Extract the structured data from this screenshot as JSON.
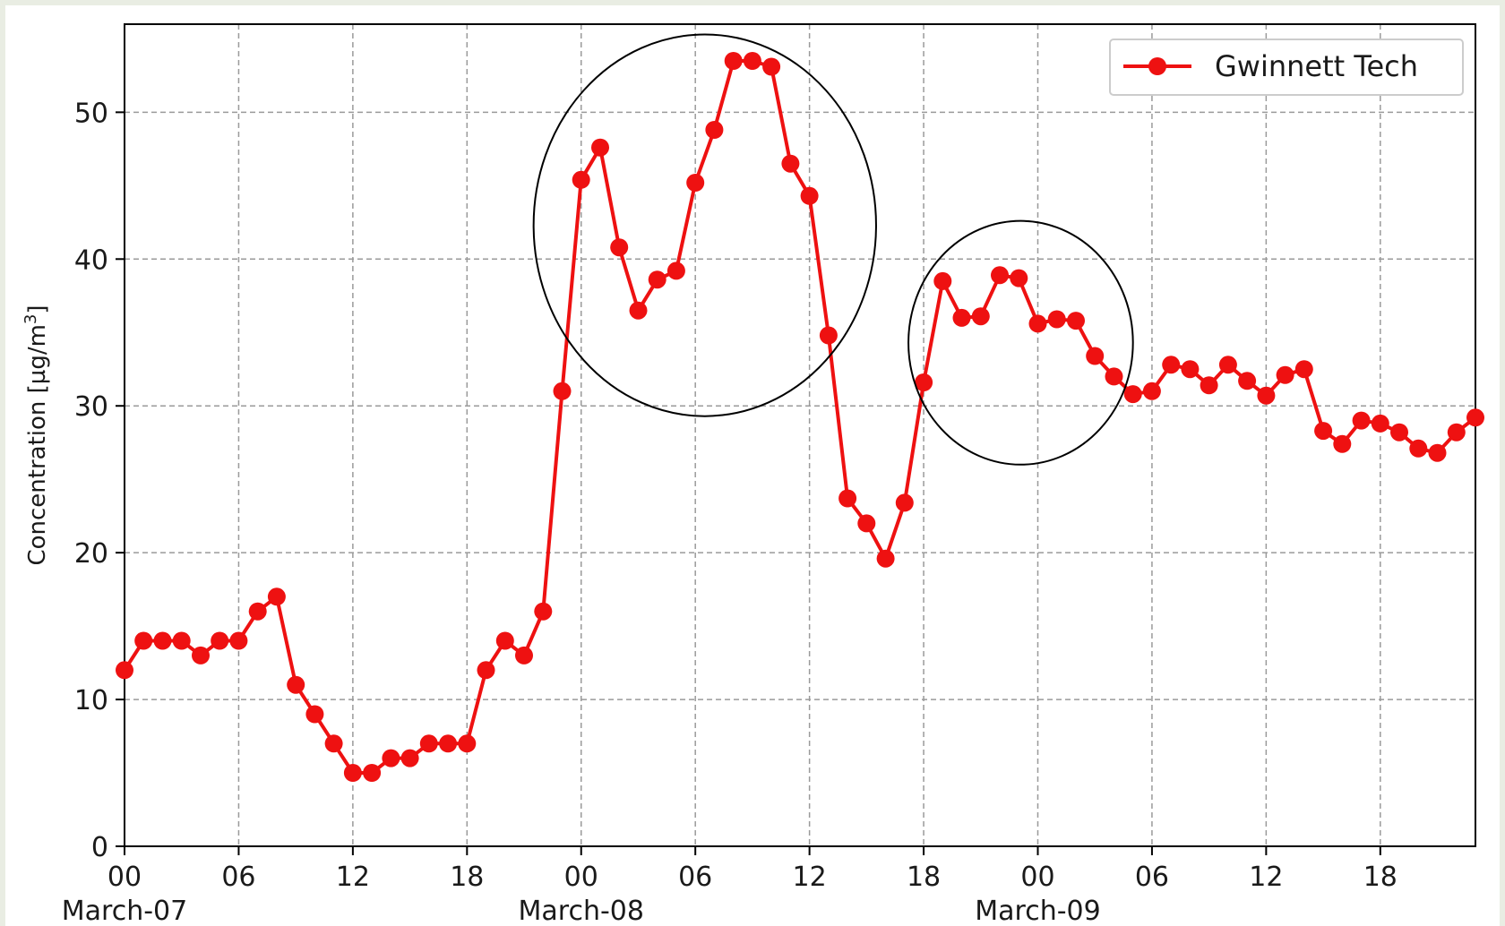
{
  "chart_data": {
    "type": "line",
    "title": "",
    "xlabel": "",
    "ylabel": "Concentration [µg/m³]",
    "ylabel_parts": {
      "main": "Concentration [µg/m",
      "sup": "3",
      "tail": "]"
    },
    "ylim": [
      0,
      56
    ],
    "xlim": [
      "March-07 00:00",
      "March-09 23:00"
    ],
    "grid": true,
    "legend_position": "top-right",
    "yticks": [
      0,
      10,
      20,
      30,
      40,
      50
    ],
    "xticks": [
      {
        "hour": 0,
        "label": "00",
        "date": "March-07"
      },
      {
        "hour": 6,
        "label": "06"
      },
      {
        "hour": 12,
        "label": "12"
      },
      {
        "hour": 18,
        "label": "18"
      },
      {
        "hour": 24,
        "label": "00",
        "date": "March-08"
      },
      {
        "hour": 30,
        "label": "06"
      },
      {
        "hour": 36,
        "label": "12"
      },
      {
        "hour": 42,
        "label": "18"
      },
      {
        "hour": 48,
        "label": "00",
        "date": "March-09"
      },
      {
        "hour": 54,
        "label": "06"
      },
      {
        "hour": 60,
        "label": "12"
      },
      {
        "hour": 66,
        "label": "18"
      }
    ],
    "series": [
      {
        "name": "Gwinnett Tech",
        "color": "#ee1111",
        "marker": "circle",
        "x_hours": [
          0,
          1,
          2,
          3,
          4,
          5,
          6,
          7,
          8,
          9,
          10,
          11,
          12,
          13,
          14,
          15,
          16,
          17,
          18,
          19,
          20,
          21,
          22,
          23,
          24,
          25,
          26,
          27,
          28,
          29,
          30,
          31,
          32,
          33,
          34,
          35,
          36,
          37,
          38,
          39,
          40,
          41,
          42,
          43,
          44,
          45,
          46,
          47,
          48,
          49,
          50,
          51,
          52,
          53,
          54,
          55,
          56,
          57,
          58,
          59,
          60,
          61,
          62,
          63,
          64,
          65,
          66,
          67,
          68,
          69,
          70,
          71
        ],
        "values": [
          12,
          14,
          14,
          14,
          13,
          14,
          14,
          16,
          17,
          11,
          9,
          7,
          5,
          5,
          6,
          6,
          7,
          7,
          7,
          12,
          14,
          13,
          16,
          31,
          45.4,
          47.6,
          40.8,
          36.5,
          38.6,
          39.2,
          45.2,
          48.8,
          53.5,
          53.5,
          53.1,
          46.5,
          44.3,
          34.8,
          23.7,
          22,
          19.6,
          23.4,
          31.6,
          38.5,
          36,
          36.1,
          38.9,
          38.7,
          35.6,
          35.9,
          35.8,
          33.4,
          32,
          30.8,
          31,
          32.8,
          32.5,
          31.4,
          32.8,
          31.7,
          30.7,
          32.1,
          32.5,
          28.3,
          27.4,
          29,
          28.8,
          28.2,
          27.1,
          26.8,
          28.2,
          29.2
        ]
      }
    ],
    "annotations": [
      {
        "shape": "ellipse",
        "center_hour": 30.5,
        "center_value": 42.3,
        "hours_half_width": 9,
        "value_half_height": 13
      },
      {
        "shape": "ellipse",
        "center_hour": 47.1,
        "center_value": 34.3,
        "hours_half_width": 5.9,
        "value_half_height": 8.3
      }
    ]
  }
}
